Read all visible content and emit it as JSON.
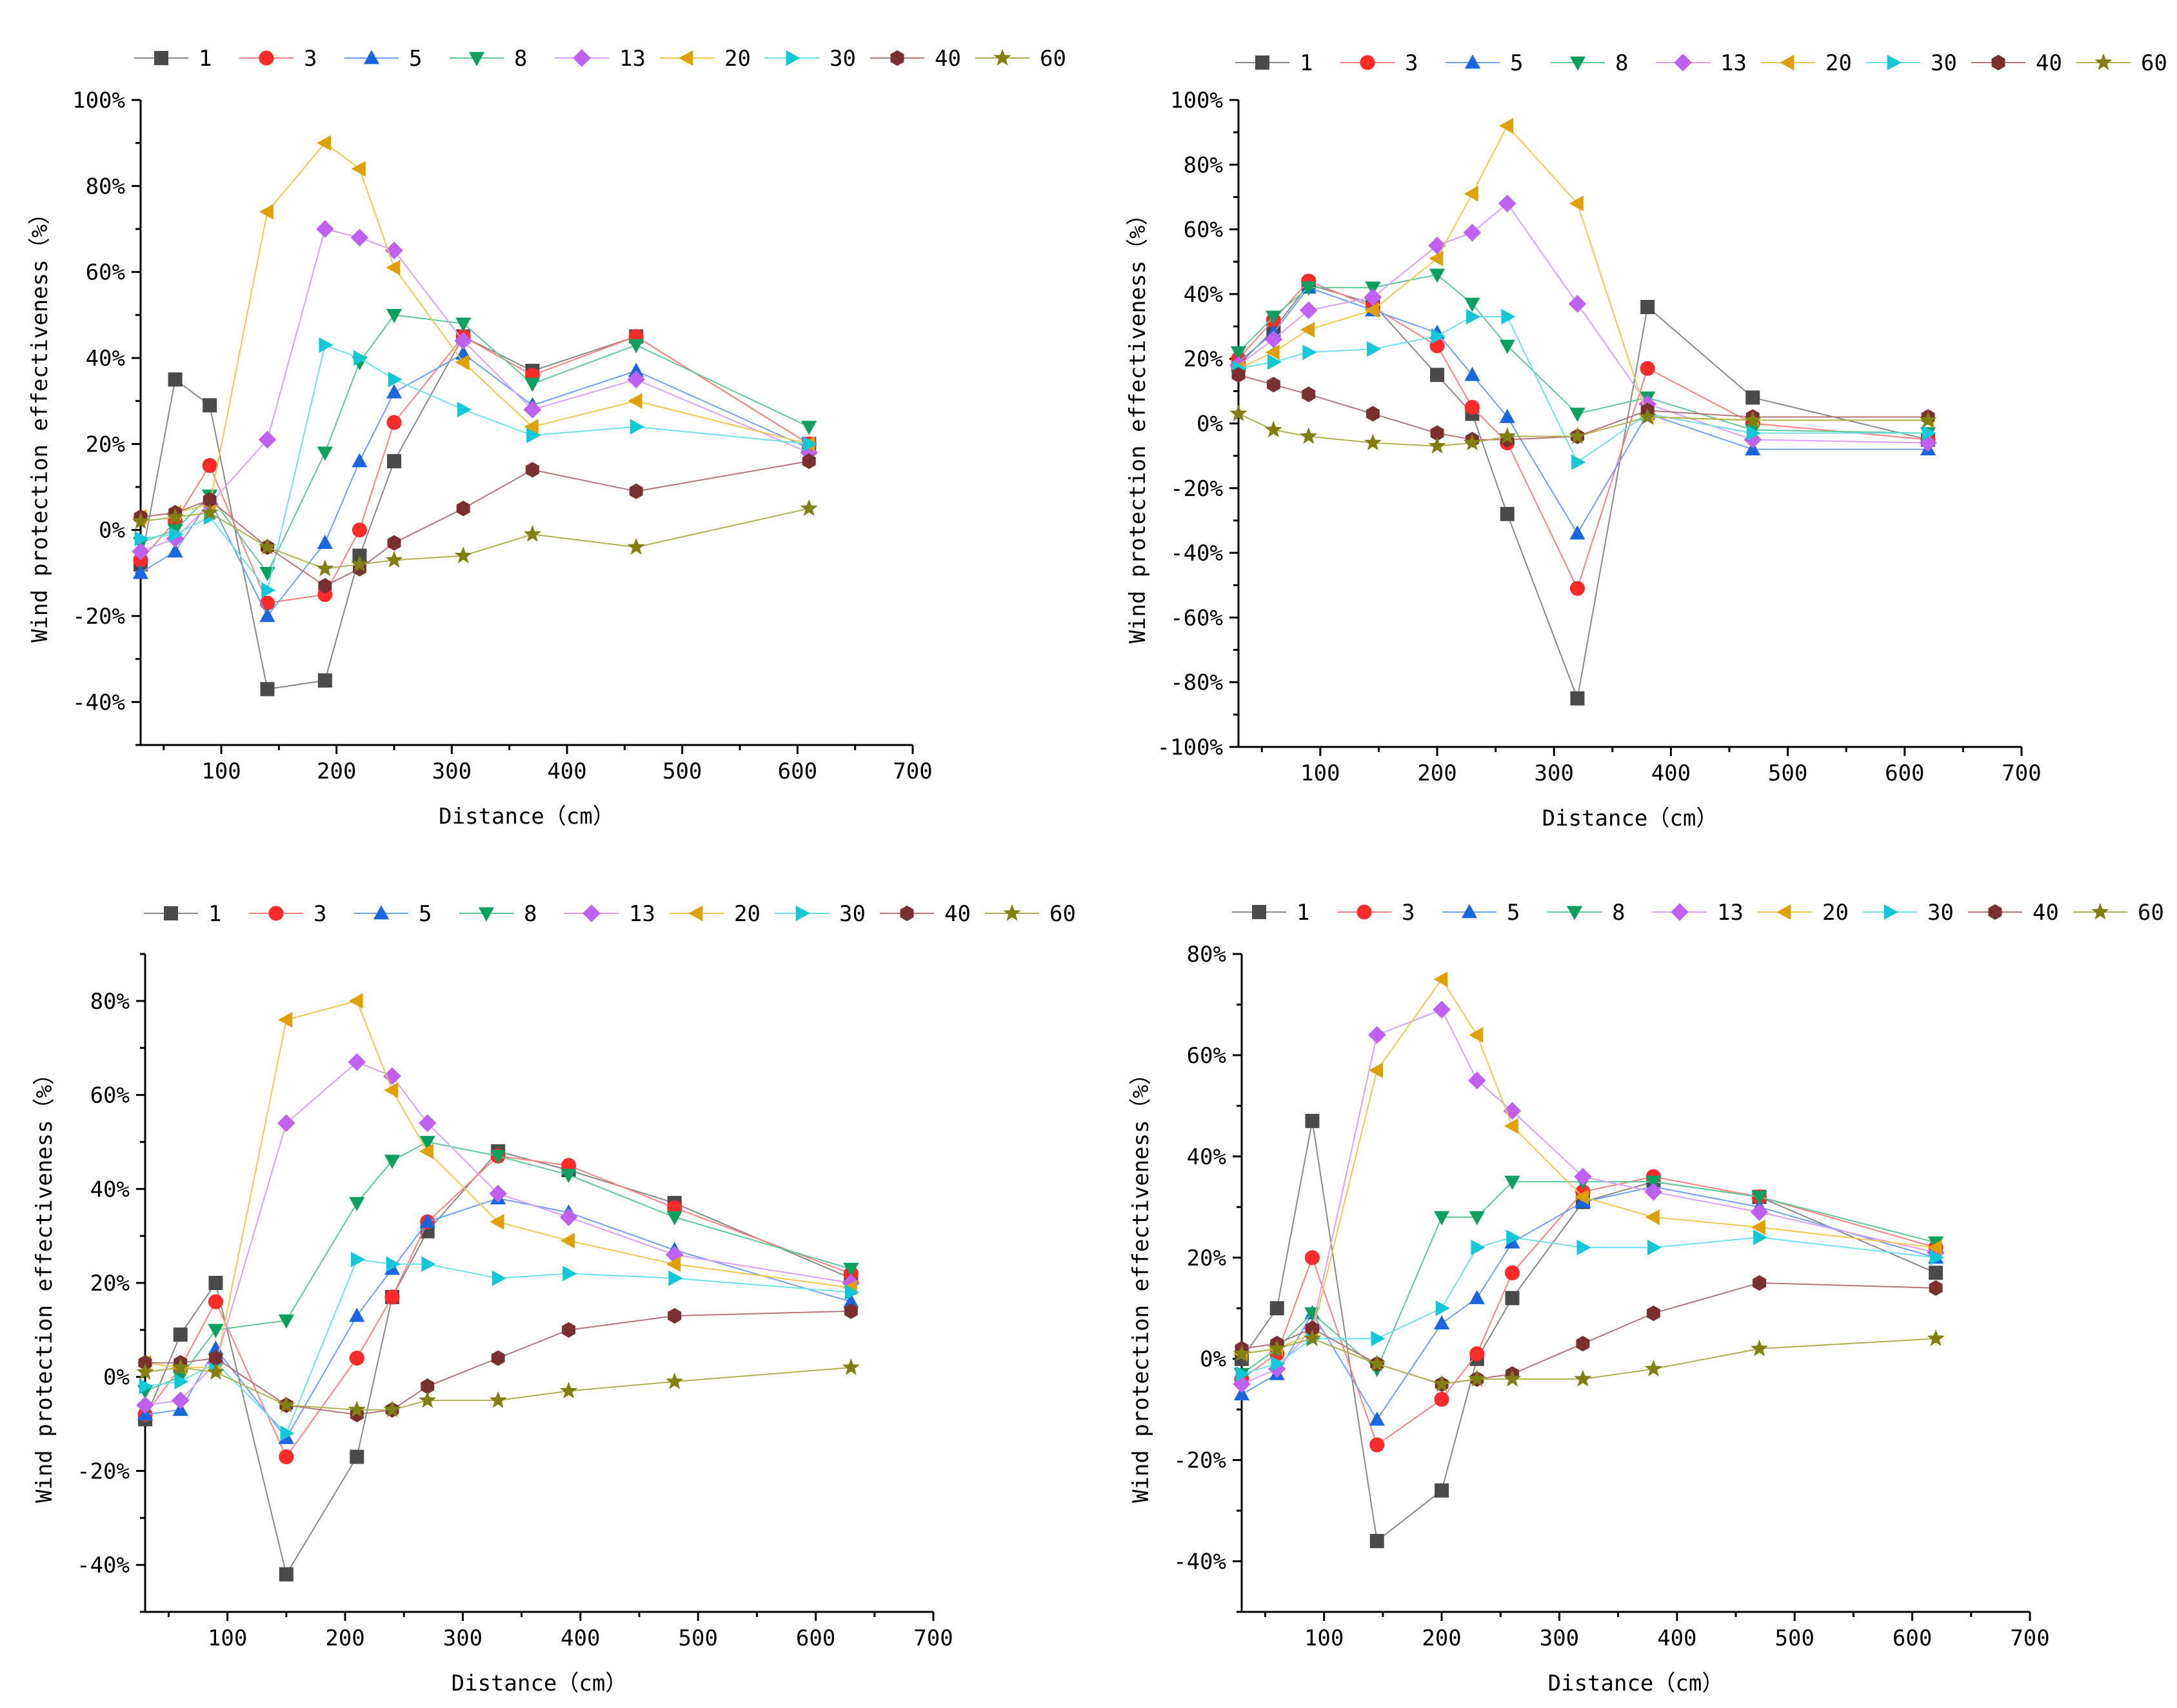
{
  "series_styles": [
    {
      "name": "1",
      "color": "#4a4a4a",
      "line_color": "#888888",
      "marker": "square"
    },
    {
      "name": "3",
      "color": "#ff2a2a",
      "line_color": "#ff8080",
      "marker": "circle"
    },
    {
      "name": "5",
      "color": "#1a66e0",
      "line_color": "#70a0f0",
      "marker": "triangle-up"
    },
    {
      "name": "8",
      "color": "#0aa060",
      "line_color": "#60c898",
      "marker": "triangle-down"
    },
    {
      "name": "13",
      "color": "#c060f0",
      "line_color": "#d8a0f8",
      "marker": "diamond"
    },
    {
      "name": "20",
      "color": "#e0a000",
      "line_color": "#f0c850",
      "marker": "triangle-left"
    },
    {
      "name": "30",
      "color": "#10c8d8",
      "line_color": "#70e0e8",
      "marker": "triangle-right"
    },
    {
      "name": "40",
      "color": "#7a3030",
      "line_color": "#b07878",
      "marker": "hexagon"
    },
    {
      "name": "60",
      "color": "#808010",
      "line_color": "#b0b050",
      "marker": "star"
    }
  ],
  "chart_data": [
    {
      "id": "chart-top-left",
      "type": "line",
      "title": "",
      "xlabel": "Distance（cm）",
      "ylabel": "Wind protection effectiveness（%）",
      "xlim": [
        30,
        700
      ],
      "ylim": [
        -50,
        100
      ],
      "xticks": [
        100,
        200,
        300,
        400,
        500,
        600,
        700
      ],
      "yticks": [
        -40,
        -20,
        0,
        20,
        40,
        60,
        80,
        100
      ],
      "legend": "top",
      "x": [
        30,
        60,
        90,
        140,
        190,
        220,
        250,
        310,
        370,
        460,
        610
      ],
      "series": [
        {
          "name": "1",
          "values": [
            -8,
            35,
            29,
            -37,
            -35,
            -6,
            16,
            45,
            37,
            45,
            20
          ]
        },
        {
          "name": "3",
          "values": [
            -7,
            2,
            15,
            -17,
            -15,
            0,
            25,
            45,
            36,
            45,
            20
          ]
        },
        {
          "name": "5",
          "values": [
            -10,
            -5,
            7,
            -20,
            -3,
            16,
            32,
            41,
            29,
            37,
            19
          ]
        },
        {
          "name": "8",
          "values": [
            -3,
            0,
            8,
            -10,
            18,
            39,
            50,
            48,
            34,
            43,
            24
          ]
        },
        {
          "name": "13",
          "values": [
            -5,
            -2,
            6,
            21,
            70,
            68,
            65,
            44,
            28,
            35,
            18
          ]
        },
        {
          "name": "20",
          "values": [
            3,
            4,
            6,
            74,
            90,
            84,
            61,
            39,
            24,
            30,
            20
          ]
        },
        {
          "name": "30",
          "values": [
            -2,
            -1,
            3,
            -14,
            43,
            40,
            35,
            28,
            22,
            24,
            20
          ]
        },
        {
          "name": "40",
          "values": [
            3,
            4,
            7,
            -4,
            -13,
            -9,
            -3,
            5,
            14,
            9,
            16
          ]
        },
        {
          "name": "60",
          "values": [
            2,
            3,
            4,
            -4,
            -9,
            -8,
            -7,
            -6,
            -1,
            -4,
            5
          ]
        }
      ]
    },
    {
      "id": "chart-top-right",
      "type": "line",
      "title": "",
      "xlabel": "Distance（cm）",
      "ylabel": "Wind protection effectiveness（%）",
      "xlim": [
        30,
        700
      ],
      "ylim": [
        -100,
        100
      ],
      "xticks": [
        100,
        200,
        300,
        400,
        500,
        600,
        700
      ],
      "yticks": [
        -100,
        -80,
        -60,
        -40,
        -20,
        0,
        20,
        40,
        60,
        80,
        100
      ],
      "legend": "top",
      "x": [
        30,
        60,
        90,
        145,
        200,
        230,
        260,
        320,
        380,
        470,
        620
      ],
      "series": [
        {
          "name": "1",
          "values": [
            18,
            29,
            43,
            37,
            15,
            3,
            -28,
            -85,
            36,
            8,
            -5
          ]
        },
        {
          "name": "3",
          "values": [
            20,
            32,
            44,
            36,
            24,
            5,
            -6,
            -51,
            17,
            0,
            -5
          ]
        },
        {
          "name": "5",
          "values": [
            19,
            28,
            42,
            35,
            28,
            15,
            2,
            -34,
            3,
            -8,
            -8
          ]
        },
        {
          "name": "8",
          "values": [
            22,
            33,
            42,
            42,
            46,
            37,
            24,
            3,
            8,
            -2,
            -3
          ]
        },
        {
          "name": "13",
          "values": [
            18,
            26,
            35,
            39,
            55,
            59,
            68,
            37,
            6,
            -5,
            -6
          ]
        },
        {
          "name": "20",
          "values": [
            17,
            22,
            29,
            35,
            51,
            71,
            92,
            68,
            2,
            1,
            1
          ]
        },
        {
          "name": "30",
          "values": [
            17,
            19,
            22,
            23,
            27,
            33,
            33,
            -12,
            3,
            -3,
            -3
          ]
        },
        {
          "name": "40",
          "values": [
            15,
            12,
            9,
            3,
            -3,
            -5,
            -5,
            -4,
            4,
            2,
            2
          ]
        },
        {
          "name": "60",
          "values": [
            3,
            -2,
            -4,
            -6,
            -7,
            -6,
            -4,
            -4,
            2,
            1,
            1
          ]
        }
      ]
    },
    {
      "id": "chart-bottom-left",
      "type": "line",
      "title": "",
      "xlabel": "Distance（cm）",
      "ylabel": "Wind protection effectiveness（%）",
      "xlim": [
        30,
        700
      ],
      "ylim": [
        -50,
        90
      ],
      "xticks": [
        100,
        200,
        300,
        400,
        500,
        600,
        700
      ],
      "yticks": [
        -40,
        -20,
        0,
        20,
        40,
        60,
        80
      ],
      "legend": "top",
      "x": [
        30,
        60,
        90,
        150,
        210,
        240,
        270,
        330,
        390,
        480,
        630
      ],
      "series": [
        {
          "name": "1",
          "values": [
            -9,
            9,
            20,
            -42,
            -17,
            17,
            31,
            48,
            44,
            37,
            21
          ]
        },
        {
          "name": "3",
          "values": [
            -8,
            2,
            16,
            -17,
            4,
            17,
            33,
            47,
            45,
            36,
            22
          ]
        },
        {
          "name": "5",
          "values": [
            -8,
            -7,
            6,
            -13,
            13,
            23,
            33,
            38,
            35,
            27,
            16
          ]
        },
        {
          "name": "8",
          "values": [
            -3,
            0,
            10,
            12,
            37,
            46,
            50,
            47,
            43,
            34,
            23
          ]
        },
        {
          "name": "13",
          "values": [
            -6,
            -5,
            3,
            54,
            67,
            64,
            54,
            39,
            34,
            26,
            20
          ]
        },
        {
          "name": "20",
          "values": [
            3,
            2,
            2,
            76,
            80,
            61,
            48,
            33,
            29,
            24,
            19
          ]
        },
        {
          "name": "30",
          "values": [
            -2,
            -1,
            3,
            -12,
            25,
            24,
            24,
            21,
            22,
            21,
            18
          ]
        },
        {
          "name": "40",
          "values": [
            3,
            3,
            4,
            -6,
            -8,
            -7,
            -2,
            4,
            10,
            13,
            14
          ]
        },
        {
          "name": "60",
          "values": [
            1,
            2,
            1,
            -6,
            -7,
            -7,
            -5,
            -5,
            -3,
            -1,
            2
          ]
        }
      ]
    },
    {
      "id": "chart-bottom-right",
      "type": "line",
      "title": "",
      "xlabel": "Distance（cm）",
      "ylabel": "Wind protection effectiveness（%）",
      "xlim": [
        30,
        700
      ],
      "ylim": [
        -50,
        80
      ],
      "xticks": [
        100,
        200,
        300,
        400,
        500,
        600,
        700
      ],
      "yticks": [
        -40,
        -20,
        0,
        20,
        40,
        60,
        80
      ],
      "legend": "top",
      "x": [
        30,
        60,
        90,
        145,
        200,
        230,
        260,
        320,
        380,
        470,
        620
      ],
      "series": [
        {
          "name": "1",
          "values": [
            0,
            10,
            47,
            -36,
            -26,
            0,
            12,
            31,
            35,
            32,
            17
          ]
        },
        {
          "name": "3",
          "values": [
            -4,
            1,
            20,
            -17,
            -8,
            1,
            17,
            33,
            36,
            32,
            22
          ]
        },
        {
          "name": "5",
          "values": [
            -7,
            -3,
            9,
            -12,
            7,
            12,
            23,
            31,
            34,
            30,
            20
          ]
        },
        {
          "name": "8",
          "values": [
            -3,
            2,
            9,
            -2,
            28,
            28,
            35,
            35,
            35,
            32,
            23
          ]
        },
        {
          "name": "13",
          "values": [
            -5,
            -2,
            6,
            64,
            69,
            55,
            49,
            36,
            33,
            29,
            21
          ]
        },
        {
          "name": "20",
          "values": [
            1,
            2,
            5,
            57,
            75,
            64,
            46,
            32,
            28,
            26,
            22
          ]
        },
        {
          "name": "30",
          "values": [
            -3,
            -1,
            4,
            4,
            10,
            22,
            24,
            22,
            22,
            24,
            20
          ]
        },
        {
          "name": "40",
          "values": [
            2,
            3,
            6,
            -1,
            -5,
            -4,
            -3,
            3,
            9,
            15,
            14
          ]
        },
        {
          "name": "60",
          "values": [
            1,
            2,
            4,
            -1,
            -5,
            -4,
            -4,
            -4,
            -2,
            2,
            4
          ]
        }
      ]
    }
  ]
}
